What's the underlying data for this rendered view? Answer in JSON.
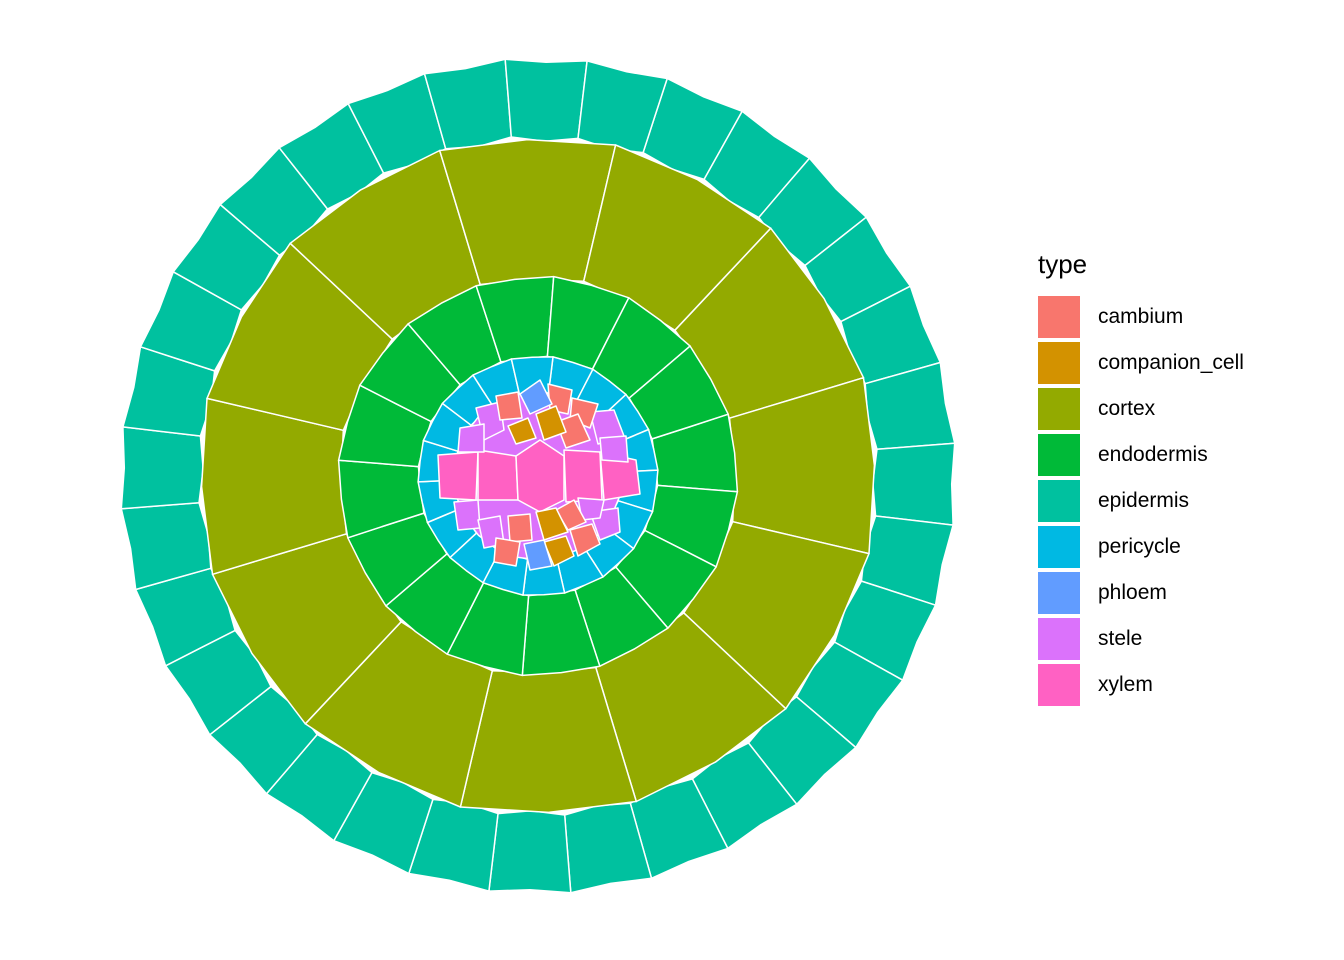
{
  "chart_data": {
    "type": "voronoi-map",
    "title": "",
    "xlabel": "",
    "ylabel": "",
    "grid": false,
    "legend": {
      "title": "type",
      "placement": "right",
      "entries": [
        {
          "label": "cambium",
          "color": "#F8766D"
        },
        {
          "label": "companion_cell",
          "color": "#D39200"
        },
        {
          "label": "cortex",
          "color": "#93AA00"
        },
        {
          "label": "endodermis",
          "color": "#00BA38"
        },
        {
          "label": "epidermis",
          "color": "#00C19F"
        },
        {
          "label": "pericycle",
          "color": "#00B9E3"
        },
        {
          "label": "phloem",
          "color": "#619CFF"
        },
        {
          "label": "stele",
          "color": "#DB72FB"
        },
        {
          "label": "xylem",
          "color": "#FF61C3"
        }
      ]
    },
    "rings": [
      {
        "type": "epidermis",
        "cell_count": 32
      },
      {
        "type": "cortex",
        "cell_count": 12
      },
      {
        "type": "endodermis",
        "cell_count": 16
      },
      {
        "type": "pericycle",
        "cell_count": 18
      }
    ],
    "center_cells": [
      {
        "type": "xylem",
        "count": 4
      },
      {
        "type": "stele",
        "count": 8
      },
      {
        "type": "cambium",
        "count": 8
      },
      {
        "type": "companion_cell",
        "count": 4
      },
      {
        "type": "phloem",
        "count": 2
      }
    ]
  }
}
